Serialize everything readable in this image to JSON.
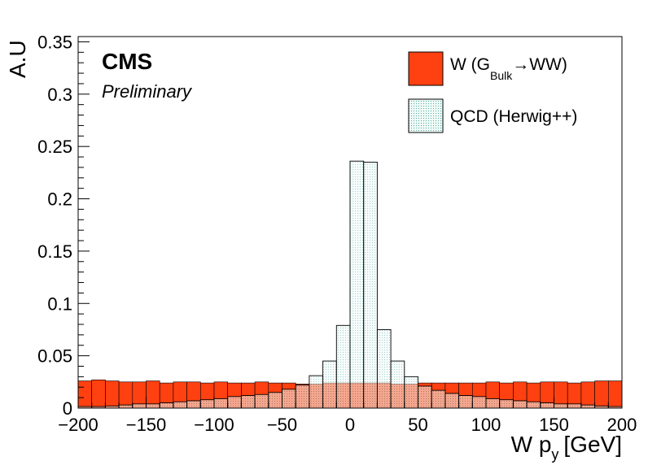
{
  "chart_data": {
    "type": "histogram",
    "experiment": "CMS",
    "status": "Preliminary",
    "xlabel": "W p",
    "xlabel_sub": "y",
    "xlabel_unit": "[GeV]",
    "ylabel": "A.U",
    "xlim": [
      -200,
      200
    ],
    "ylim": [
      0,
      0.355
    ],
    "x_ticks": [
      "−200",
      "−150",
      "−100",
      "−50",
      "0",
      "50",
      "100",
      "150",
      "200"
    ],
    "y_ticks": [
      "0",
      "0.05",
      "0.1",
      "0.15",
      "0.2",
      "0.25",
      "0.3",
      "0.35"
    ],
    "bin_edges": [
      -200,
      -190,
      -180,
      -170,
      -160,
      -150,
      -140,
      -130,
      -120,
      -110,
      -100,
      -90,
      -80,
      -70,
      -60,
      -50,
      -40,
      -30,
      -20,
      -10,
      0,
      10,
      20,
      30,
      40,
      50,
      60,
      70,
      80,
      90,
      100,
      110,
      120,
      130,
      140,
      150,
      160,
      170,
      180,
      190,
      200
    ],
    "series": [
      {
        "name": "W (G",
        "name_sub": "Bulk",
        "name_suffix": "→WW)",
        "color": "#ff4010",
        "values": [
          0.026,
          0.027,
          0.026,
          0.025,
          0.025,
          0.026,
          0.024,
          0.025,
          0.025,
          0.024,
          0.025,
          0.024,
          0.024,
          0.025,
          0.024,
          0.024,
          0.023,
          0.023,
          0.024,
          0.024,
          0.024,
          0.024,
          0.024,
          0.023,
          0.023,
          0.024,
          0.024,
          0.024,
          0.024,
          0.024,
          0.025,
          0.024,
          0.025,
          0.024,
          0.025,
          0.025,
          0.024,
          0.025,
          0.026,
          0.026
        ]
      },
      {
        "name": "QCD (Herwig++)",
        "color": "#e6f5f2",
        "values": [
          0.0015,
          0.0015,
          0.002,
          0.003,
          0.004,
          0.004,
          0.005,
          0.006,
          0.007,
          0.008,
          0.009,
          0.011,
          0.012,
          0.013,
          0.015,
          0.018,
          0.022,
          0.031,
          0.045,
          0.079,
          0.236,
          0.235,
          0.075,
          0.045,
          0.03,
          0.021,
          0.017,
          0.014,
          0.012,
          0.011,
          0.009,
          0.008,
          0.007,
          0.006,
          0.005,
          0.004,
          0.004,
          0.003,
          0.002,
          0.0015
        ]
      }
    ]
  }
}
